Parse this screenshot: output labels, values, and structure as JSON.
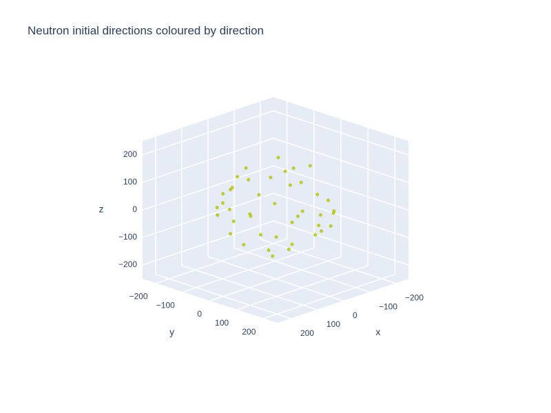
{
  "chart_data": {
    "type": "scatter3d",
    "title": "Neutron initial directions coloured by direction",
    "xlabel": "x",
    "ylabel": "y",
    "zlabel": "z",
    "color": "#c4d21a",
    "grid": true,
    "xlim": [
      -250,
      250
    ],
    "ylim": [
      -250,
      250
    ],
    "zlim": [
      -250,
      250
    ],
    "xticks": [
      {
        "value": -200,
        "label": "−200"
      },
      {
        "value": -100,
        "label": "−100"
      },
      0,
      100,
      200
    ],
    "yticks": [
      {
        "value": -200,
        "label": "−200"
      },
      {
        "value": -100,
        "label": "−100"
      },
      0,
      100,
      200
    ],
    "zticks": [
      {
        "value": -200,
        "label": "−200"
      },
      {
        "value": -100,
        "label": "−100"
      },
      0,
      100,
      200
    ],
    "x": [
      160,
      139,
      80,
      0,
      -80,
      -139,
      -160,
      -139,
      -80,
      0,
      80,
      139,
      135,
      99,
      36,
      -36,
      -99,
      -135,
      -135,
      -99,
      -36,
      36,
      99,
      135,
      60,
      -50,
      20,
      -100,
      110,
      -20,
      70,
      -90,
      40,
      -130,
      150,
      -60,
      10,
      -30,
      180,
      -170,
      90,
      -40
    ],
    "y": [
      0,
      80,
      139,
      160,
      139,
      80,
      0,
      -80,
      -139,
      -160,
      -139,
      -80,
      36,
      99,
      135,
      135,
      99,
      36,
      -36,
      -99,
      -135,
      -135,
      -99,
      -36,
      40,
      80,
      -90,
      -30,
      -60,
      30,
      -50,
      60,
      100,
      -90,
      120,
      -150,
      20,
      -40,
      -20,
      40,
      170,
      -180
    ],
    "z": [
      10,
      -20,
      25,
      -5,
      15,
      -30,
      5,
      20,
      -15,
      30,
      -10,
      0,
      40,
      -35,
      50,
      -45,
      35,
      -50,
      45,
      -40,
      55,
      -30,
      25,
      -55,
      150,
      170,
      130,
      110,
      90,
      -140,
      -120,
      -100,
      -80,
      70,
      -60,
      -90,
      200,
      -190,
      110,
      -100,
      60,
      50
    ]
  }
}
